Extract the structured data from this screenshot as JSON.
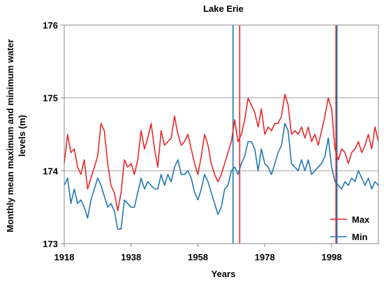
{
  "chart_data": {
    "type": "line",
    "title": "Lake Erie",
    "xlabel": "Years",
    "ylabel": "Monthly mean maximum and minimum water levels (m)",
    "xlim": [
      1918,
      2012
    ],
    "ylim": [
      173,
      176
    ],
    "x_ticks": [
      1918,
      1938,
      1958,
      1978,
      1998
    ],
    "y_ticks": [
      173,
      174,
      175,
      176
    ],
    "grid": "horizontal",
    "legend_position": "bottom-right",
    "series": [
      {
        "name": "Max",
        "color": "#e8262a",
        "x": [
          1918,
          1919,
          1920,
          1921,
          1922,
          1923,
          1924,
          1925,
          1926,
          1927,
          1928,
          1929,
          1930,
          1931,
          1932,
          1933,
          1934,
          1935,
          1936,
          1937,
          1938,
          1939,
          1940,
          1941,
          1942,
          1943,
          1944,
          1945,
          1946,
          1947,
          1948,
          1949,
          1950,
          1951,
          1952,
          1953,
          1954,
          1955,
          1956,
          1957,
          1958,
          1959,
          1960,
          1961,
          1962,
          1963,
          1964,
          1965,
          1966,
          1967,
          1968,
          1969,
          1970,
          1971,
          1972,
          1973,
          1974,
          1975,
          1976,
          1977,
          1978,
          1979,
          1980,
          1981,
          1982,
          1983,
          1984,
          1985,
          1986,
          1987,
          1988,
          1989,
          1990,
          1991,
          1992,
          1993,
          1994,
          1995,
          1996,
          1997,
          1998,
          1999,
          2000,
          2001,
          2002,
          2003,
          2004,
          2005,
          2006,
          2007,
          2008,
          2009,
          2010,
          2011,
          2012
        ],
        "y": [
          174.1,
          174.5,
          174.25,
          174.3,
          174.05,
          173.95,
          174.15,
          173.75,
          173.9,
          174.05,
          174.2,
          174.65,
          174.55,
          174.1,
          173.8,
          173.7,
          173.45,
          173.7,
          174.15,
          174.05,
          174.1,
          173.95,
          174.15,
          174.55,
          174.3,
          174.45,
          174.65,
          174.3,
          174.05,
          174.55,
          174.35,
          174.4,
          174.45,
          174.75,
          174.5,
          174.35,
          174.4,
          174.5,
          174.3,
          174.1,
          173.95,
          174.2,
          174.5,
          174.35,
          174.1,
          173.95,
          173.85,
          173.95,
          174.1,
          174.25,
          174.4,
          174.7,
          174.4,
          174.5,
          174.7,
          175.0,
          174.9,
          174.8,
          174.6,
          174.85,
          174.5,
          174.6,
          174.55,
          174.65,
          174.65,
          174.75,
          175.05,
          174.9,
          174.5,
          174.55,
          174.5,
          174.6,
          174.45,
          174.6,
          174.4,
          174.5,
          174.35,
          174.55,
          174.75,
          175.0,
          174.85,
          174.3,
          174.15,
          174.3,
          174.25,
          174.1,
          174.25,
          174.3,
          174.4,
          174.25,
          174.35,
          174.5,
          174.3,
          174.6,
          174.4
        ]
      },
      {
        "name": "Min",
        "color": "#1f77b4",
        "x": [
          1918,
          1919,
          1920,
          1921,
          1922,
          1923,
          1924,
          1925,
          1926,
          1927,
          1928,
          1929,
          1930,
          1931,
          1932,
          1933,
          1934,
          1935,
          1936,
          1937,
          1938,
          1939,
          1940,
          1941,
          1942,
          1943,
          1944,
          1945,
          1946,
          1947,
          1948,
          1949,
          1950,
          1951,
          1952,
          1953,
          1954,
          1955,
          1956,
          1957,
          1958,
          1959,
          1960,
          1961,
          1962,
          1963,
          1964,
          1965,
          1966,
          1967,
          1968,
          1969,
          1970,
          1971,
          1972,
          1973,
          1974,
          1975,
          1976,
          1977,
          1978,
          1979,
          1980,
          1981,
          1982,
          1983,
          1984,
          1985,
          1986,
          1987,
          1988,
          1989,
          1990,
          1991,
          1992,
          1993,
          1994,
          1995,
          1996,
          1997,
          1998,
          1999,
          2000,
          2001,
          2002,
          2003,
          2004,
          2005,
          2006,
          2007,
          2008,
          2009,
          2010,
          2011,
          2012
        ],
        "y": [
          173.8,
          173.9,
          173.55,
          173.75,
          173.55,
          173.6,
          173.5,
          173.35,
          173.6,
          173.75,
          173.9,
          173.8,
          173.65,
          173.5,
          173.55,
          173.45,
          173.2,
          173.2,
          173.6,
          173.55,
          173.5,
          173.5,
          173.7,
          173.9,
          173.75,
          173.85,
          173.8,
          173.75,
          173.75,
          173.95,
          173.8,
          173.95,
          173.85,
          174.05,
          174.15,
          173.95,
          173.95,
          174.0,
          173.9,
          173.7,
          173.6,
          173.75,
          173.95,
          173.85,
          173.7,
          173.55,
          173.4,
          173.5,
          173.75,
          173.8,
          174.0,
          174.05,
          173.95,
          174.1,
          174.2,
          174.4,
          174.4,
          174.3,
          174.0,
          174.3,
          174.1,
          174.05,
          173.95,
          174.1,
          174.25,
          174.35,
          174.65,
          174.55,
          174.1,
          174.05,
          174.0,
          174.15,
          174.0,
          174.15,
          173.95,
          174.0,
          174.05,
          174.1,
          174.2,
          174.45,
          174.05,
          173.85,
          173.8,
          173.75,
          173.85,
          173.8,
          173.9,
          173.85,
          174.0,
          173.9,
          173.8,
          173.9,
          173.75,
          173.85,
          173.8
        ]
      }
    ],
    "vertical_markers": [
      {
        "x": 1968.5,
        "color": "#1f77b4"
      },
      {
        "x": 1970.5,
        "color": "#e8262a"
      },
      {
        "x": 1999.3,
        "color": "#e8262a"
      },
      {
        "x": 1999.6,
        "color": "#1f77b4"
      }
    ]
  }
}
